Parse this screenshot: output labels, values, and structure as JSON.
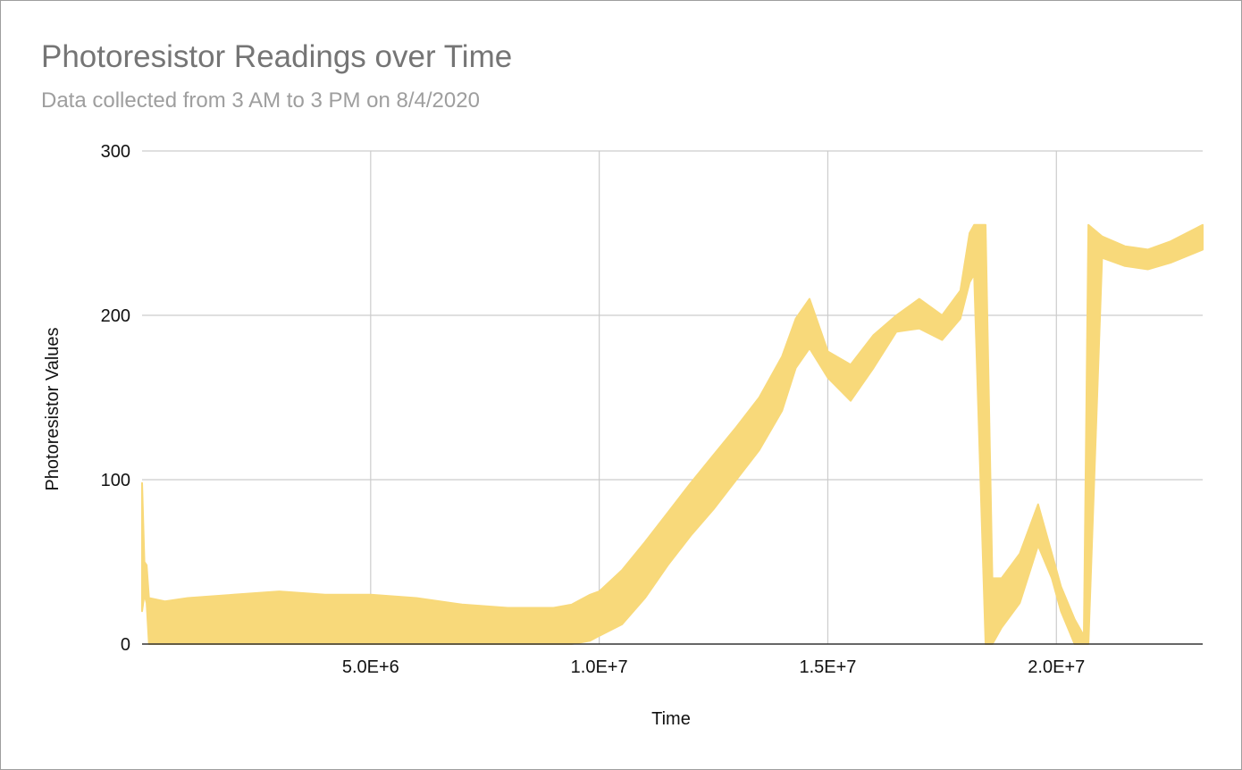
{
  "chart_data": {
    "type": "area",
    "title": "Photoresistor Readings over Time",
    "subtitle": "Data collected from 3 AM to 3 PM on 8/4/2020",
    "xlabel": "Time",
    "ylabel": "Photoresistor Values",
    "xlim": [
      0,
      23200000
    ],
    "ylim": [
      0,
      300
    ],
    "x_ticks": [
      5000000,
      10000000,
      15000000,
      20000000
    ],
    "x_tick_labels": [
      "5.0E+6",
      "1.0E+7",
      "1.5E+7",
      "2.0E+7"
    ],
    "y_ticks": [
      0,
      100,
      200,
      300
    ],
    "y_tick_labels": [
      "0",
      "100",
      "200",
      "300"
    ],
    "grid": true,
    "legend": "none",
    "series": [
      {
        "color": "#f8d97a",
        "x": [
          0,
          50000,
          100000,
          150000,
          500000,
          1000000,
          2000000,
          3000000,
          4000000,
          5000000,
          6000000,
          7000000,
          8000000,
          9000000,
          9400000,
          9800000,
          10000000,
          10500000,
          11000000,
          11500000,
          12000000,
          12500000,
          13000000,
          13500000,
          14000000,
          14300000,
          14600000,
          15000000,
          15500000,
          16000000,
          16500000,
          17000000,
          17500000,
          17900000,
          18100000,
          18200000,
          18450000,
          18600000,
          18800000,
          19200000,
          19600000,
          19900000,
          20100000,
          20400000,
          20600000,
          20700000,
          21000000,
          21500000,
          22000000,
          22500000,
          23200000
        ],
        "upper": [
          98,
          50,
          48,
          28,
          26,
          28,
          30,
          32,
          30,
          30,
          28,
          24,
          22,
          22,
          24,
          30,
          32,
          45,
          62,
          80,
          98,
          115,
          132,
          150,
          175,
          198,
          210,
          178,
          170,
          188,
          200,
          210,
          200,
          215,
          250,
          255,
          255,
          40,
          40,
          55,
          85,
          55,
          35,
          15,
          5,
          255,
          248,
          242,
          240,
          245,
          255
        ],
        "lower": [
          20,
          30,
          25,
          0,
          0,
          0,
          0,
          0,
          0,
          0,
          0,
          0,
          0,
          0,
          0,
          2,
          5,
          12,
          28,
          48,
          66,
          82,
          100,
          118,
          142,
          168,
          180,
          162,
          148,
          168,
          190,
          192,
          185,
          198,
          220,
          225,
          0,
          0,
          10,
          25,
          60,
          40,
          20,
          0,
          0,
          0,
          235,
          230,
          228,
          232,
          240
        ]
      }
    ]
  }
}
